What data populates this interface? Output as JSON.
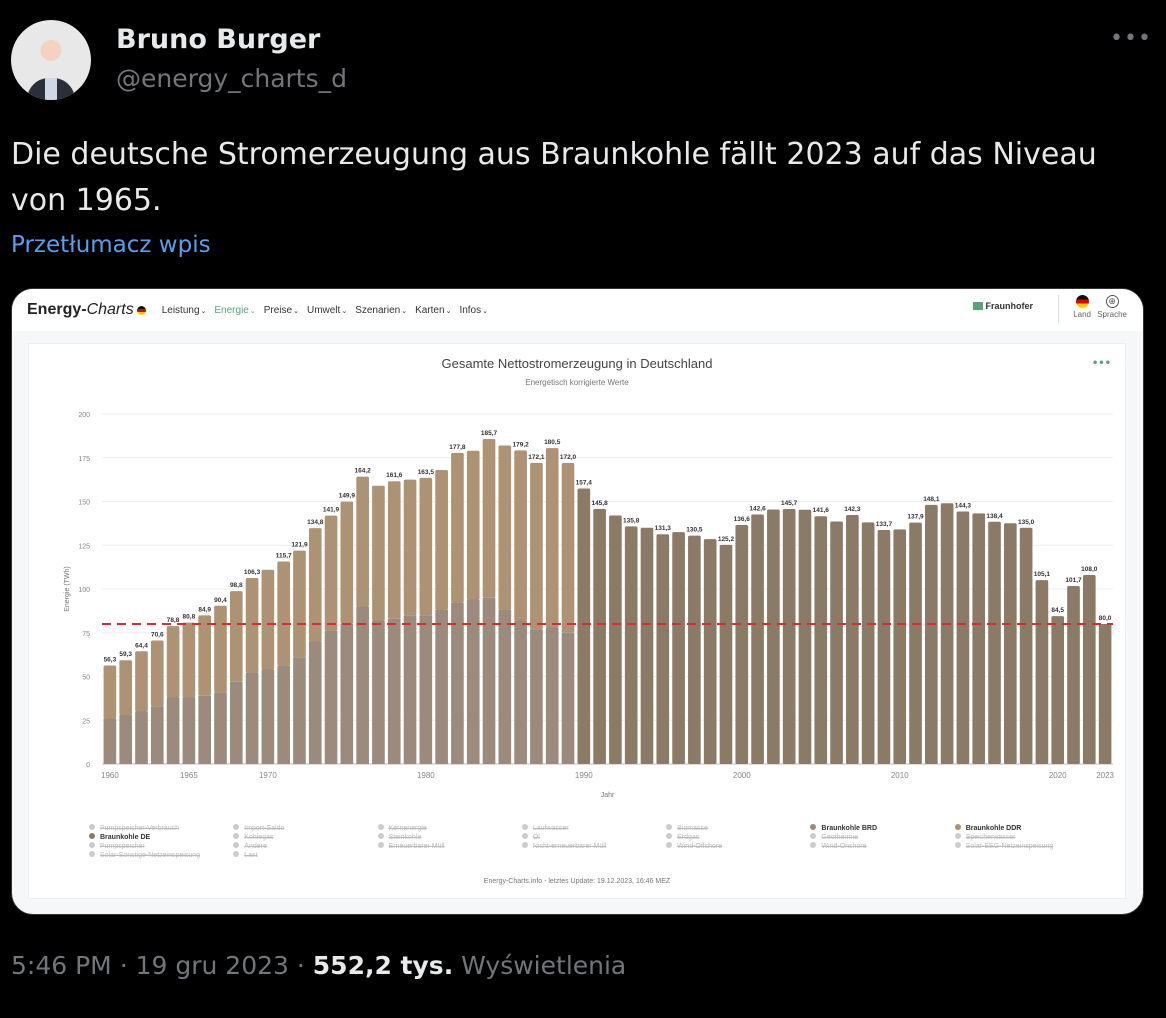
{
  "tweet": {
    "author_name": "Bruno Burger",
    "handle": "@energy_charts_d",
    "more_icon": "more-horizontal-icon",
    "text": "Die deutsche Stromerzeugung aus Braunkohle fällt 2023 auf das Niveau von 1965.",
    "translate_label": "Przetłumacz wpis",
    "time": "5:46 PM",
    "date": "19 gru 2023",
    "views_count": "552,2 tys.",
    "views_label": "Wyświetlenia",
    "separator": "·"
  },
  "site": {
    "logo_main": "Energy-",
    "logo_italic": "Charts",
    "nav": [
      {
        "label": "Leistung",
        "active": false
      },
      {
        "label": "Energie",
        "active": true
      },
      {
        "label": "Preise",
        "active": false
      },
      {
        "label": "Umwelt",
        "active": false
      },
      {
        "label": "Szenarien",
        "active": false
      },
      {
        "label": "Karten",
        "active": false
      },
      {
        "label": "Infos",
        "active": false
      }
    ],
    "chevron": "⌄",
    "partner": "Fraunhofer",
    "land_label": "Land",
    "language_label": "Sprache",
    "menu_dots": "•••",
    "accent_color": "#5ea27a"
  },
  "chart_data": {
    "type": "bar",
    "stacked": true,
    "title": "Gesamte Nettostromerzeugung in Deutschland",
    "subtitle": "Energetisch korrigierte Werte",
    "xlabel": "Jahr",
    "ylabel": "Energie (TWh)",
    "ylim": [
      0,
      200
    ],
    "yticks": [
      0,
      25,
      50,
      75,
      100,
      125,
      150,
      175,
      200
    ],
    "xticks": [
      1960,
      1965,
      1970,
      1980,
      1990,
      2000,
      2010,
      2020,
      2023
    ],
    "grid": true,
    "reference_line": {
      "value": 80.0,
      "color": "#d32f2f",
      "style": "dashed"
    },
    "x": [
      1960,
      1961,
      1962,
      1963,
      1964,
      1965,
      1966,
      1967,
      1968,
      1969,
      1970,
      1971,
      1972,
      1973,
      1974,
      1975,
      1976,
      1977,
      1978,
      1979,
      1980,
      1981,
      1982,
      1983,
      1984,
      1985,
      1986,
      1987,
      1988,
      1989,
      1990,
      1991,
      1992,
      1993,
      1994,
      1995,
      1996,
      1997,
      1998,
      1999,
      2000,
      2001,
      2002,
      2003,
      2004,
      2005,
      2006,
      2007,
      2008,
      2009,
      2010,
      2011,
      2012,
      2013,
      2014,
      2015,
      2016,
      2017,
      2018,
      2019,
      2020,
      2021,
      2022,
      2023
    ],
    "totals": [
      56.3,
      59.3,
      64.4,
      70.6,
      78.8,
      80.8,
      84.9,
      90.4,
      98.8,
      106.3,
      111.0,
      115.7,
      121.9,
      134.8,
      141.9,
      149.9,
      164.2,
      159.0,
      161.6,
      162.5,
      163.5,
      168.0,
      177.8,
      179.0,
      185.7,
      182.0,
      179.2,
      172.1,
      180.5,
      172.0,
      157.4,
      145.8,
      142.0,
      135.8,
      135.0,
      131.3,
      132.5,
      130.5,
      128.5,
      125.2,
      136.6,
      142.6,
      145.4,
      145.7,
      145.3,
      141.6,
      138.6,
      142.3,
      138.1,
      133.7,
      134.1,
      137.9,
      148.1,
      149.0,
      144.3,
      143.2,
      138.4,
      137.6,
      135.0,
      105.1,
      84.5,
      101.7,
      108.0,
      80.0
    ],
    "labels_shown": {
      "1960": "56,3",
      "1961": "59,3",
      "1962": "64,4",
      "1963": "70,6",
      "1964": "78,8",
      "1965": "80,8",
      "1966": "84,9",
      "1967": "90,4",
      "1968": "98,8",
      "1969": "106,3",
      "1971": "115,7",
      "1972": "121,9",
      "1973": "134,8",
      "1974": "141,9",
      "1975": "149,9",
      "1976": "164,2",
      "1978": "161,6",
      "1980": "163,5",
      "1982": "177,8",
      "1984": "185,7",
      "1986": "179,2",
      "1987": "172,1",
      "1988": "180,5",
      "1989": "172,0",
      "1990": "157,4",
      "1991": "145,8",
      "1993": "135,8",
      "1995": "131,3",
      "1997": "130,5",
      "1999": "125,2",
      "2000": "136,6",
      "2001": "142,6",
      "2003": "145,7",
      "2005": "141,6",
      "2007": "142,3",
      "2009": "133,7",
      "2011": "137,9",
      "2012": "148,1",
      "2014": "144,3",
      "2016": "138,4",
      "2018": "135,0",
      "2019": "105,1",
      "2020": "84,5",
      "2021": "101,7",
      "2022": "108,0",
      "2023": "80,0"
    },
    "series": [
      {
        "name": "Braunkohle BRD",
        "color": "#9c8a7c",
        "years": [
          1960,
          1989
        ],
        "values": [
          26,
          28,
          30,
          33,
          38,
          38,
          39,
          41,
          47,
          52,
          54,
          56,
          61,
          70,
          76,
          80,
          90,
          82,
          83,
          85,
          85,
          88,
          92,
          94,
          95,
          88,
          82,
          77,
          78,
          75
        ]
      },
      {
        "name": "Braunkohle DDR",
        "color": "#ad9273",
        "years": [
          1960,
          1989
        ],
        "values": "totals minus Braunkohle BRD"
      },
      {
        "name": "Braunkohle DE",
        "color": "#8a7a66",
        "years": [
          1990,
          2023
        ],
        "values": "totals from 1990"
      }
    ],
    "legend": [
      {
        "label": "Pumpspeicher-Verbrauch",
        "active": false
      },
      {
        "label": "Import-Saldo",
        "active": false
      },
      {
        "label": "Kernenergie",
        "active": false
      },
      {
        "label": "Laufwasser",
        "active": false
      },
      {
        "label": "Biomasse",
        "active": false
      },
      {
        "label": "Braunkohle BRD",
        "active": true,
        "color": "#9c8a7c"
      },
      {
        "label": "Braunkohle DDR",
        "active": true,
        "color": "#ad9273"
      },
      {
        "label": "Braunkohle DE",
        "active": true,
        "color": "#8a7a66"
      },
      {
        "label": "Kohlegas",
        "active": false
      },
      {
        "label": "Steinkohle",
        "active": false
      },
      {
        "label": "Öl",
        "active": false
      },
      {
        "label": "Erdgas",
        "active": false
      },
      {
        "label": "Geothermie",
        "active": false
      },
      {
        "label": "Speicherwasser",
        "active": false
      },
      {
        "label": "Pumpspeicher",
        "active": false
      },
      {
        "label": "Andere",
        "active": false
      },
      {
        "label": "Erneuerbarer Müll",
        "active": false
      },
      {
        "label": "Nicht-erneuerbarer Müll",
        "active": false
      },
      {
        "label": "Wind-Offshore",
        "active": false
      },
      {
        "label": "Wind-Onshore",
        "active": false
      },
      {
        "label": "Solar-EEG-Netzeinspeisung",
        "active": false
      },
      {
        "label": "Solar-Sonstige-Netzeinspeisung",
        "active": false
      },
      {
        "label": "Last",
        "active": false
      }
    ],
    "legend_placement": "bottom",
    "credit": "Energy-Charts.info - letztes Update: 19.12.2023, 16:46 MEZ"
  }
}
